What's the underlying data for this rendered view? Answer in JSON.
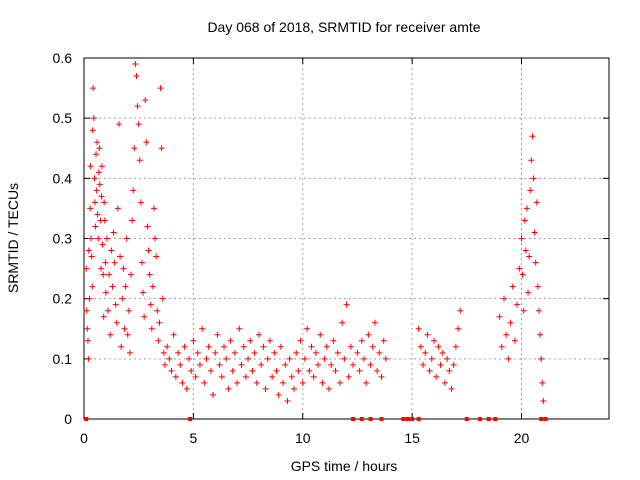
{
  "chart_data": {
    "type": "scatter",
    "title": "Day 068 of 2018, SRMTID for receiver amte",
    "xlabel": "GPS time / hours",
    "ylabel": "SRMTID / TECUs",
    "xlim": [
      0,
      24
    ],
    "ylim": [
      0,
      0.6
    ],
    "grid": true,
    "marker": "+",
    "color": "#ff0000",
    "x_ticks": [
      0,
      5,
      10,
      15,
      20
    ],
    "x_tick_labels": [
      "0",
      "5",
      "10",
      "15",
      "20"
    ],
    "y_ticks": [
      0,
      0.1,
      0.2,
      0.3,
      0.4,
      0.5,
      0.6
    ],
    "y_tick_labels": [
      "0",
      "0.1",
      "0.2",
      "0.3",
      "0.4",
      "0.5",
      "0.6"
    ],
    "series": [
      {
        "name": "SRMTID",
        "points": [
          [
            0.1,
            0.25
          ],
          [
            0.12,
            0.18
          ],
          [
            0.15,
            0.15
          ],
          [
            0.18,
            0.13
          ],
          [
            0.2,
            0.1
          ],
          [
            0.22,
            0.28
          ],
          [
            0.25,
            0.2
          ],
          [
            0.28,
            0.35
          ],
          [
            0.3,
            0.42
          ],
          [
            0.32,
            0.3
          ],
          [
            0.35,
            0.27
          ],
          [
            0.38,
            0.22
          ],
          [
            0.4,
            0.48
          ],
          [
            0.42,
            0.55
          ],
          [
            0.45,
            0.5
          ],
          [
            0.48,
            0.4
          ],
          [
            0.5,
            0.36
          ],
          [
            0.52,
            0.32
          ],
          [
            0.55,
            0.44
          ],
          [
            0.58,
            0.38
          ],
          [
            0.6,
            0.46
          ],
          [
            0.62,
            0.34
          ],
          [
            0.65,
            0.3
          ],
          [
            0.68,
            0.41
          ],
          [
            0.7,
            0.45
          ],
          [
            0.72,
            0.39
          ],
          [
            0.75,
            0.33
          ],
          [
            0.78,
            0.25
          ],
          [
            0.8,
            0.37
          ],
          [
            0.82,
            0.42
          ],
          [
            0.85,
            0.29
          ],
          [
            0.88,
            0.24
          ],
          [
            0.9,
            0.17
          ],
          [
            0.92,
            0.36
          ],
          [
            0.95,
            0.33
          ],
          [
            0.98,
            0.26
          ],
          [
            1.0,
            0.21
          ],
          [
            1.05,
            0.3
          ],
          [
            1.1,
            0.18
          ],
          [
            1.15,
            0.24
          ],
          [
            1.2,
            0.14
          ],
          [
            1.25,
            0.28
          ],
          [
            1.3,
            0.22
          ],
          [
            1.35,
            0.31
          ],
          [
            1.4,
            0.26
          ],
          [
            1.45,
            0.19
          ],
          [
            1.5,
            0.16
          ],
          [
            1.55,
            0.35
          ],
          [
            1.6,
            0.49
          ],
          [
            1.65,
            0.27
          ],
          [
            1.7,
            0.12
          ],
          [
            1.75,
            0.2
          ],
          [
            1.8,
            0.25
          ],
          [
            1.85,
            0.15
          ],
          [
            1.9,
            0.22
          ],
          [
            1.95,
            0.3
          ],
          [
            2.0,
            0.14
          ],
          [
            2.05,
            0.18
          ],
          [
            2.1,
            0.11
          ],
          [
            2.15,
            0.24
          ],
          [
            2.2,
            0.33
          ],
          [
            2.25,
            0.38
          ],
          [
            2.3,
            0.45
          ],
          [
            2.35,
            0.59
          ],
          [
            2.4,
            0.57
          ],
          [
            2.45,
            0.52
          ],
          [
            2.5,
            0.49
          ],
          [
            2.55,
            0.43
          ],
          [
            2.6,
            0.36
          ],
          [
            2.65,
            0.26
          ],
          [
            2.7,
            0.21
          ],
          [
            2.75,
            0.17
          ],
          [
            2.8,
            0.53
          ],
          [
            2.85,
            0.46
          ],
          [
            2.9,
            0.32
          ],
          [
            2.95,
            0.28
          ],
          [
            3.0,
            0.24
          ],
          [
            3.05,
            0.19
          ],
          [
            3.1,
            0.15
          ],
          [
            3.15,
            0.22
          ],
          [
            3.2,
            0.35
          ],
          [
            3.25,
            0.3
          ],
          [
            3.3,
            0.27
          ],
          [
            3.35,
            0.18
          ],
          [
            3.4,
            0.13
          ],
          [
            3.45,
            0.16
          ],
          [
            3.5,
            0.55
          ],
          [
            3.55,
            0.45
          ],
          [
            3.6,
            0.2
          ],
          [
            3.65,
            0.11
          ],
          [
            3.7,
            0.09
          ],
          [
            3.8,
            0.12
          ],
          [
            3.9,
            0.1
          ],
          [
            4.0,
            0.08
          ],
          [
            4.1,
            0.14
          ],
          [
            4.2,
            0.07
          ],
          [
            4.3,
            0.11
          ],
          [
            4.4,
            0.09
          ],
          [
            4.5,
            0.06
          ],
          [
            4.6,
            0.12
          ],
          [
            4.7,
            0.05
          ],
          [
            4.8,
            0.1
          ],
          [
            4.9,
            0.08
          ],
          [
            5.0,
            0.13
          ],
          [
            5.1,
            0.07
          ],
          [
            5.2,
            0.11
          ],
          [
            5.3,
            0.09
          ],
          [
            5.4,
            0.15
          ],
          [
            5.5,
            0.06
          ],
          [
            5.6,
            0.1
          ],
          [
            5.7,
            0.12
          ],
          [
            5.8,
            0.08
          ],
          [
            5.9,
            0.04
          ],
          [
            6.0,
            0.11
          ],
          [
            6.1,
            0.14
          ],
          [
            6.2,
            0.09
          ],
          [
            6.3,
            0.07
          ],
          [
            6.4,
            0.12
          ],
          [
            6.5,
            0.1
          ],
          [
            6.6,
            0.05
          ],
          [
            6.7,
            0.13
          ],
          [
            6.8,
            0.08
          ],
          [
            6.9,
            0.11
          ],
          [
            7.0,
            0.06
          ],
          [
            7.1,
            0.15
          ],
          [
            7.2,
            0.09
          ],
          [
            7.3,
            0.12
          ],
          [
            7.4,
            0.07
          ],
          [
            7.5,
            0.1
          ],
          [
            7.6,
            0.13
          ],
          [
            7.7,
            0.08
          ],
          [
            7.8,
            0.11
          ],
          [
            7.9,
            0.06
          ],
          [
            8.0,
            0.14
          ],
          [
            8.1,
            0.09
          ],
          [
            8.2,
            0.12
          ],
          [
            8.3,
            0.05
          ],
          [
            8.4,
            0.1
          ],
          [
            8.5,
            0.13
          ],
          [
            8.6,
            0.07
          ],
          [
            8.7,
            0.11
          ],
          [
            8.8,
            0.08
          ],
          [
            8.9,
            0.04
          ],
          [
            9.0,
            0.12
          ],
          [
            9.1,
            0.06
          ],
          [
            9.2,
            0.09
          ],
          [
            9.3,
            0.03
          ],
          [
            9.4,
            0.1
          ],
          [
            9.5,
            0.07
          ],
          [
            9.6,
            0.05
          ],
          [
            9.7,
            0.11
          ],
          [
            9.8,
            0.08
          ],
          [
            9.9,
            0.13
          ],
          [
            10.0,
            0.06
          ],
          [
            10.1,
            0.1
          ],
          [
            10.2,
            0.15
          ],
          [
            10.3,
            0.08
          ],
          [
            10.4,
            0.12
          ],
          [
            10.5,
            0.07
          ],
          [
            10.6,
            0.11
          ],
          [
            10.7,
            0.09
          ],
          [
            10.8,
            0.14
          ],
          [
            10.9,
            0.06
          ],
          [
            11.0,
            0.1
          ],
          [
            11.1,
            0.12
          ],
          [
            11.2,
            0.05
          ],
          [
            11.3,
            0.09
          ],
          [
            11.4,
            0.13
          ],
          [
            11.5,
            0.08
          ],
          [
            11.6,
            0.11
          ],
          [
            11.7,
            0.06
          ],
          [
            11.8,
            0.16
          ],
          [
            11.9,
            0.1
          ],
          [
            12.0,
            0.19
          ],
          [
            12.1,
            0.07
          ],
          [
            12.2,
            0.12
          ],
          [
            12.3,
            0.09
          ],
          [
            12.5,
            0.11
          ],
          [
            12.6,
            0.08
          ],
          [
            12.7,
            0.13
          ],
          [
            12.8,
            0.1
          ],
          [
            12.9,
            0.06
          ],
          [
            13.0,
            0.14
          ],
          [
            13.1,
            0.09
          ],
          [
            13.2,
            0.12
          ],
          [
            13.3,
            0.16
          ],
          [
            13.4,
            0.08
          ],
          [
            13.5,
            0.11
          ],
          [
            13.6,
            0.07
          ],
          [
            13.7,
            0.13
          ],
          [
            13.8,
            0.1
          ],
          [
            15.3,
            0.15
          ],
          [
            15.4,
            0.12
          ],
          [
            15.5,
            0.09
          ],
          [
            15.6,
            0.11
          ],
          [
            15.7,
            0.14
          ],
          [
            15.8,
            0.08
          ],
          [
            15.9,
            0.1
          ],
          [
            16.0,
            0.13
          ],
          [
            16.1,
            0.07
          ],
          [
            16.2,
            0.12
          ],
          [
            16.3,
            0.09
          ],
          [
            16.4,
            0.11
          ],
          [
            16.5,
            0.06
          ],
          [
            16.6,
            0.1
          ],
          [
            16.7,
            0.08
          ],
          [
            16.8,
            0.05
          ],
          [
            16.9,
            0.09
          ],
          [
            17.0,
            0.12
          ],
          [
            17.1,
            0.15
          ],
          [
            17.2,
            0.18
          ],
          [
            19.0,
            0.17
          ],
          [
            19.1,
            0.12
          ],
          [
            19.2,
            0.2
          ],
          [
            19.3,
            0.14
          ],
          [
            19.4,
            0.1
          ],
          [
            19.5,
            0.16
          ],
          [
            19.6,
            0.22
          ],
          [
            19.7,
            0.13
          ],
          [
            19.8,
            0.19
          ],
          [
            19.9,
            0.25
          ],
          [
            20.0,
            0.3
          ],
          [
            20.05,
            0.24
          ],
          [
            20.1,
            0.18
          ],
          [
            20.15,
            0.33
          ],
          [
            20.2,
            0.28
          ],
          [
            20.25,
            0.35
          ],
          [
            20.3,
            0.21
          ],
          [
            20.35,
            0.27
          ],
          [
            20.4,
            0.38
          ],
          [
            20.45,
            0.43
          ],
          [
            20.5,
            0.47
          ],
          [
            20.55,
            0.4
          ],
          [
            20.6,
            0.31
          ],
          [
            20.65,
            0.26
          ],
          [
            20.7,
            0.36
          ],
          [
            20.75,
            0.22
          ],
          [
            20.8,
            0.18
          ],
          [
            20.85,
            0.14
          ],
          [
            20.9,
            0.1
          ],
          [
            20.95,
            0.06
          ],
          [
            21.0,
            0.03
          ]
        ]
      }
    ],
    "baseline_markers_x": [
      0.1,
      4.85,
      12.3,
      12.7,
      13.1,
      13.6,
      14.6,
      14.8,
      15.0,
      15.3,
      17.5,
      18.1,
      18.5,
      18.8,
      20.9,
      21.1
    ]
  }
}
